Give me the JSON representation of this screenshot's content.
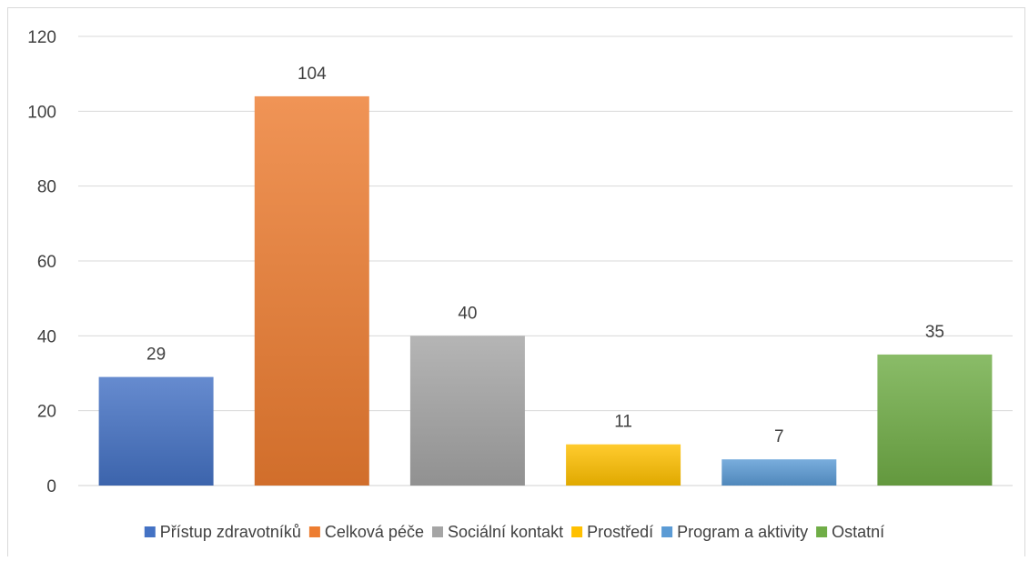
{
  "chart_data": {
    "type": "bar",
    "title": "",
    "xlabel": "",
    "ylabel": "",
    "ylim": [
      0,
      120
    ],
    "yticks": [
      0,
      20,
      40,
      60,
      80,
      100,
      120
    ],
    "grid": true,
    "legend_position": "bottom",
    "categories": [
      "Přístup zdravotníků",
      "Celková péče",
      "Sociální kontakt",
      "Prostředí",
      "Program a aktivity",
      "Ostatní"
    ],
    "values": [
      29,
      104,
      40,
      11,
      7,
      35
    ],
    "colors": [
      "#4472c4",
      "#ed7d31",
      "#a5a5a5",
      "#ffc000",
      "#5b9bd5",
      "#70ad47"
    ],
    "data_labels": [
      "29",
      "104",
      "40",
      "11",
      "7",
      "35"
    ]
  }
}
